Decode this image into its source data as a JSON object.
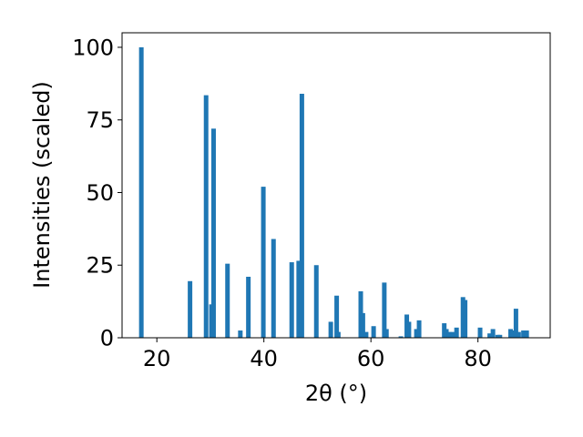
{
  "chart_data": {
    "type": "bar",
    "xlabel": "2θ (°)",
    "ylabel": "Intensities (scaled)",
    "xlim": [
      13.5,
      93.5
    ],
    "ylim": [
      0,
      105
    ],
    "xticks": [
      20,
      40,
      60,
      80
    ],
    "yticks": [
      0,
      25,
      50,
      75,
      100
    ],
    "bar_color": "#1f77b4",
    "grid": false,
    "x": [
      17.1,
      26.2,
      29.2,
      30.2,
      30.6,
      33.2,
      35.6,
      37.1,
      39.9,
      41.8,
      45.2,
      46.5,
      47.1,
      49.8,
      52.5,
      53.6,
      53.9,
      58.1,
      58.5,
      59.1,
      60.5,
      62.5,
      62.9,
      65.6,
      66.7,
      67.1,
      68.5,
      69.0,
      73.7,
      74.1,
      74.6,
      75.3,
      76.0,
      77.2,
      77.6,
      80.4,
      82.2,
      82.8,
      83.7,
      84.1,
      86.1,
      86.6,
      87.1,
      87.6,
      88.5,
      89.1
    ],
    "values": [
      100,
      19.5,
      83.5,
      11.5,
      72,
      25.5,
      2.5,
      21,
      52,
      34,
      26,
      26.5,
      84,
      25,
      5.5,
      14.5,
      2,
      16,
      8.5,
      2,
      4,
      19,
      3,
      0.5,
      8,
      5.5,
      3,
      6,
      5,
      3,
      2,
      2,
      3.5,
      14,
      13,
      3.5,
      1.5,
      3,
      1,
      1,
      3,
      2.5,
      10,
      2,
      2.5,
      2.5
    ]
  }
}
